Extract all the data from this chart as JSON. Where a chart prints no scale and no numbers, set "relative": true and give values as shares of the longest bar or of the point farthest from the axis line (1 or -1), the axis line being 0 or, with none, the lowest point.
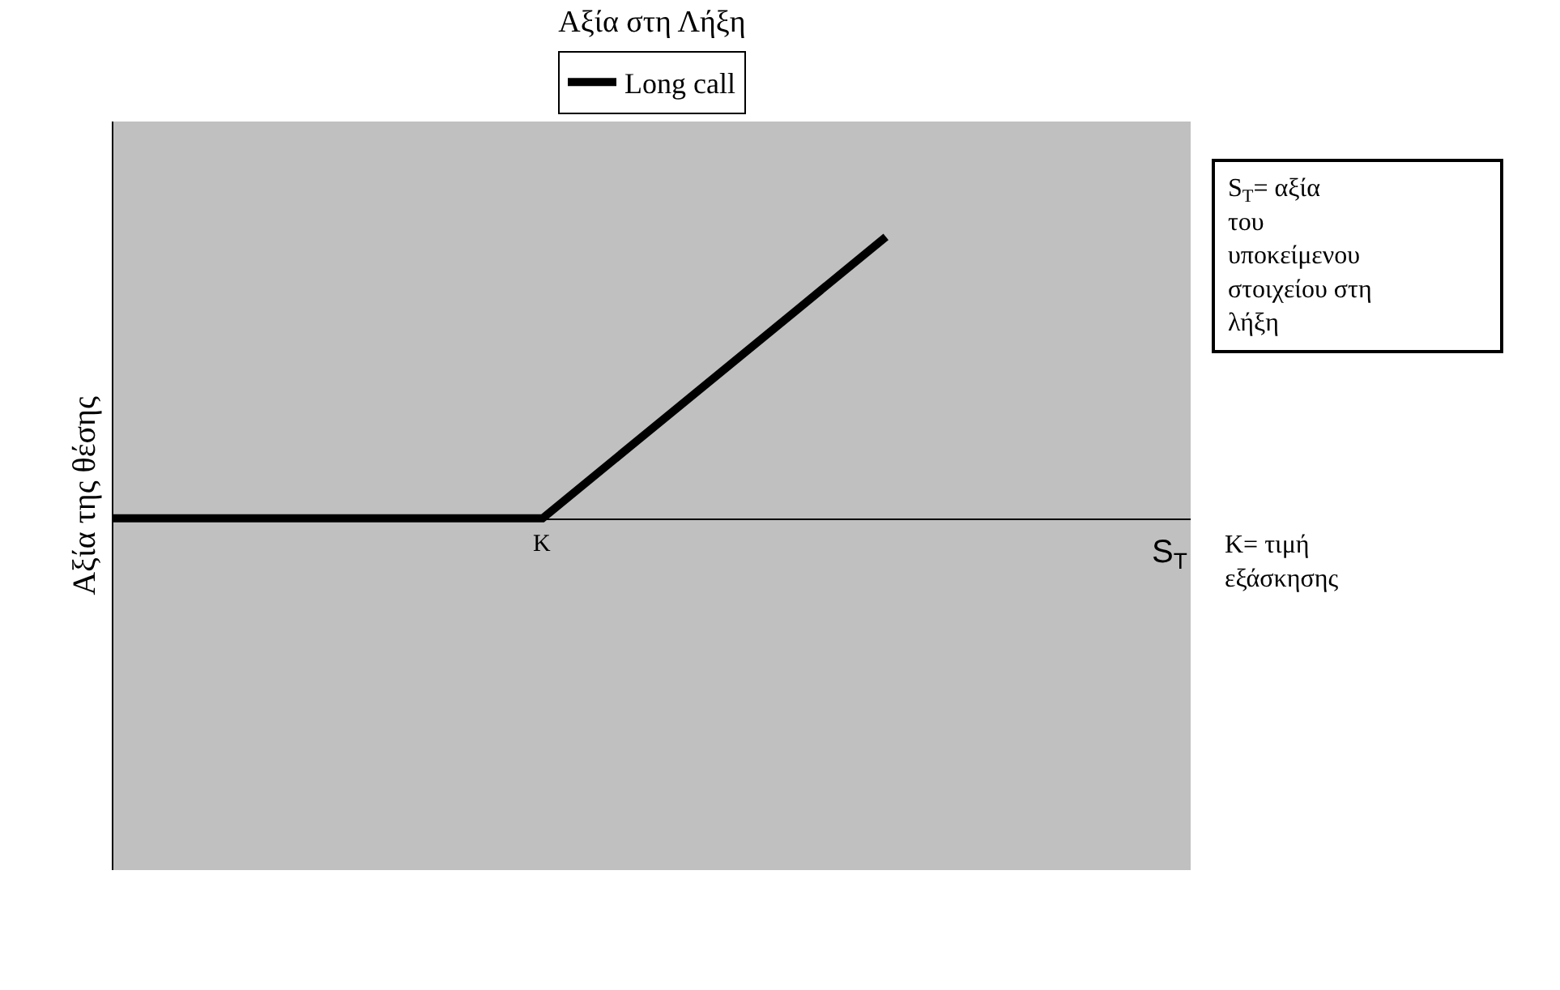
{
  "chart_data": {
    "type": "line",
    "title": "Αξία στη Λήξη",
    "xlabel": "S$_{T}$",
    "ylabel": "Αξία της θέσης",
    "categories": [
      null,
      null,
      null,
      null,
      null,
      null,
      null,
      null,
      null,
      null,
      null,
      null,
      null
    ],
    "relative": true,
    "series": [
      {
        "name": "Long call",
        "color": "#000000",
        "values": [
          0,
          0,
          0,
          0,
          0,
          0,
          0.25,
          0.5,
          0.75,
          1,
          null,
          null,
          null
        ]
      }
    ],
    "legend": "top",
    "grid": false,
    "marker": "none",
    "line_style": "solid",
    "annotations": [
      {
        "text": "K",
        "y": 0
      },
      "S$_{T}$= αξία του υποκείμενου στοιχείου στη λήξη",
      "K= τιμή εξάσκησης"
    ]
  }
}
